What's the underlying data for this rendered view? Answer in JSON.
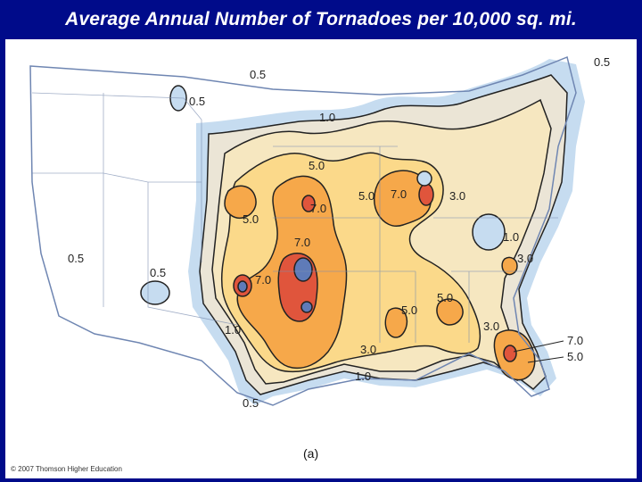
{
  "title": "Average Annual Number of Tornadoes per 10,000 sq. mi.",
  "figure_label": "(a)",
  "copyright": "© 2007 Thomson Higher Education",
  "contour_labels": {
    "l_05_nw": "0.5",
    "l_05_ne": "0.5",
    "l_05_mt": "0.5",
    "l_05_w1": "0.5",
    "l_05_w2": "0.5",
    "l_05_s": "0.5",
    "l_10_n": "1.0",
    "l_10_w": "1.0",
    "l_10_s": "1.0",
    "l_10_e": "1.0",
    "l_50_n": "5.0",
    "l_50_c": "5.0",
    "l_50_w": "5.0",
    "l_50_se": "5.0",
    "l_50_s": "5.0",
    "l_50_fl": "5.0",
    "l_70_c": "7.0",
    "l_70_m": "7.0",
    "l_70_w": "7.0",
    "l_70_ne": "7.0",
    "l_70_fl": "7.0",
    "l_30_ne": "3.0",
    "l_30_e": "3.0",
    "l_30_s": "3.0",
    "l_30_fl": "3.0"
  },
  "colors": {
    "background": "#000b8a",
    "ocean_band": "#c6dcf0",
    "level_0_5": "#ebe5d6",
    "level_1_0": "#f6e7c0",
    "level_3_0": "#fbd98a",
    "level_5_0": "#f6a84a",
    "level_7_0": "#e0553c",
    "max": "#5f7bb8"
  }
}
